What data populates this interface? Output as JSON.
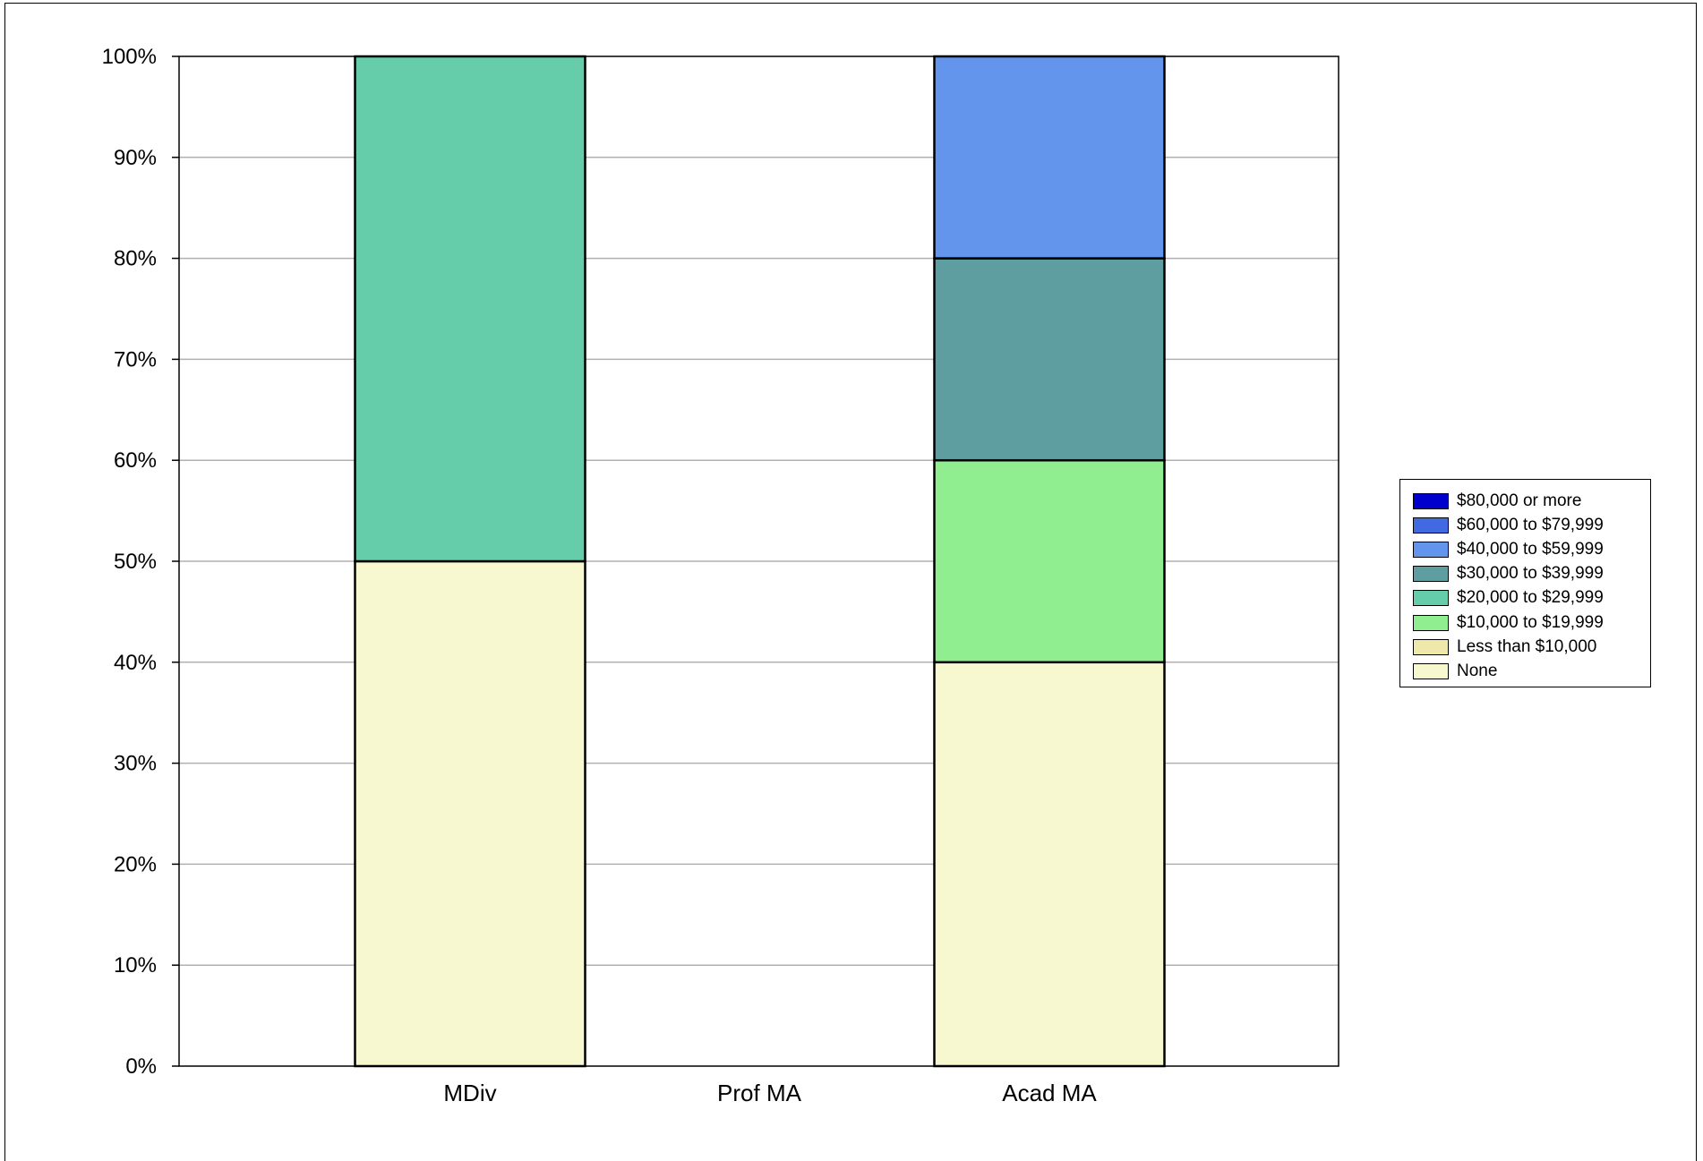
{
  "chart_data": {
    "type": "bar",
    "stacked": true,
    "categories": [
      "MDiv",
      "Prof MA",
      "Acad MA"
    ],
    "ylim": [
      0,
      100
    ],
    "y_ticks": [
      "0%",
      "10%",
      "20%",
      "30%",
      "40%",
      "50%",
      "60%",
      "70%",
      "80%",
      "90%",
      "100%"
    ],
    "grid": true,
    "legend_position": "right",
    "series": [
      {
        "name": "None",
        "color": "#F8F8D0",
        "values": [
          50,
          0,
          40
        ]
      },
      {
        "name": "Less than $10,000",
        "color": "#EEE8AA",
        "values": [
          0,
          0,
          0
        ]
      },
      {
        "name": "$10,000 to $19,999",
        "color": "#90EE90",
        "values": [
          0,
          0,
          20
        ]
      },
      {
        "name": "$20,000 to $29,999",
        "color": "#66CDAA",
        "values": [
          50,
          0,
          0
        ]
      },
      {
        "name": "$30,000 to $39,999",
        "color": "#5F9EA0",
        "values": [
          0,
          0,
          20
        ]
      },
      {
        "name": "$40,000 to $59,999",
        "color": "#6495ED",
        "values": [
          0,
          0,
          20
        ]
      },
      {
        "name": "$60,000 to $79,999",
        "color": "#4169E1",
        "values": [
          0,
          0,
          0
        ]
      },
      {
        "name": "$80,000 or more",
        "color": "#0000CD",
        "values": [
          0,
          0,
          0
        ]
      }
    ]
  }
}
